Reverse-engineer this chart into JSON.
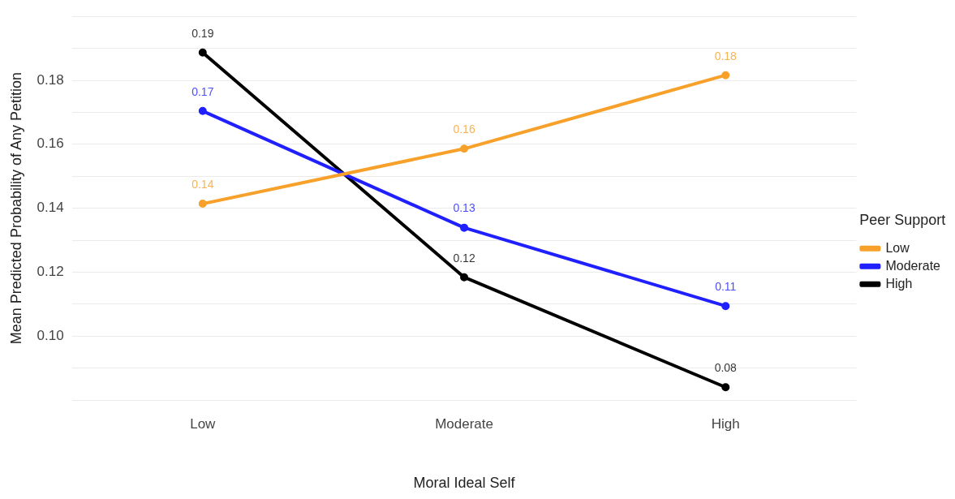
{
  "chart_data": {
    "type": "line",
    "xlabel": "Moral Ideal Self",
    "ylabel": "Mean Predicted Probability of Any Petition",
    "legend_title": "Peer Support",
    "legend": "right",
    "grid": "y",
    "marker": "circle",
    "line_style": "solid",
    "categories": [
      "Low",
      "Moderate",
      "High"
    ],
    "ylim": [
      0.08,
      0.2
    ],
    "yticks": [
      {
        "value": 0.08,
        "label": null
      },
      {
        "value": 0.09,
        "label": null
      },
      {
        "value": 0.1,
        "label": "0.10"
      },
      {
        "value": 0.11,
        "label": null
      },
      0.12,
      {
        "value": 0.13,
        "label": null
      },
      0.14,
      {
        "value": 0.15,
        "label": null
      },
      0.16,
      {
        "value": 0.17,
        "label": null
      },
      0.18,
      {
        "value": 0.19,
        "label": null
      },
      {
        "value": 0.2,
        "label": null
      }
    ],
    "series": [
      {
        "name": "Low",
        "color": "#f7a02a",
        "values": [
          0.1414,
          0.1586,
          0.1816
        ],
        "value_labels": [
          "0.14",
          "0.16",
          "0.18"
        ]
      },
      {
        "name": "Moderate",
        "color": "#2020ff",
        "values": [
          0.1704,
          0.1339,
          0.1094
        ],
        "value_labels": [
          "0.17",
          "0.13",
          "0.11"
        ]
      },
      {
        "name": "High",
        "color": "#000000",
        "values": [
          0.1887,
          0.1184,
          0.084
        ],
        "value_labels": [
          "0.19",
          "0.12",
          "0.08"
        ]
      }
    ]
  }
}
